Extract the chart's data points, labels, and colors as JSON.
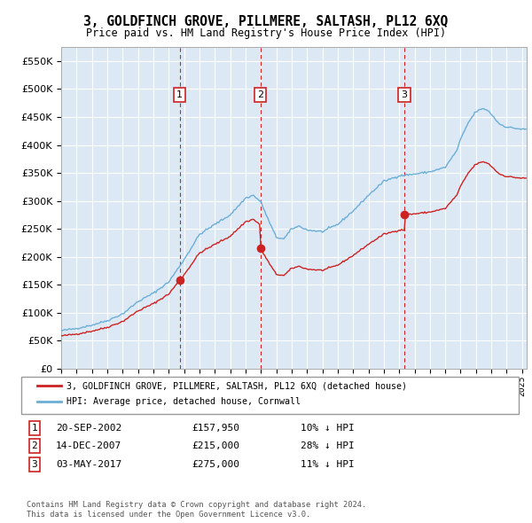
{
  "title": "3, GOLDFINCH GROVE, PILLMERE, SALTASH, PL12 6XQ",
  "subtitle": "Price paid vs. HM Land Registry's House Price Index (HPI)",
  "legend_line1": "3, GOLDFINCH GROVE, PILLMERE, SALTASH, PL12 6XQ (detached house)",
  "legend_line2": "HPI: Average price, detached house, Cornwall",
  "footer1": "Contains HM Land Registry data © Crown copyright and database right 2024.",
  "footer2": "This data is licensed under the Open Government Licence v3.0.",
  "hpi_color": "#6baed6",
  "sale_color": "#cc2222",
  "vline_color": "#cc2222",
  "bg_color": "#dce9f5",
  "ylim": [
    0,
    575000
  ],
  "xlim_start": 1995.0,
  "xlim_end": 2025.3,
  "sales": [
    {
      "label": "1",
      "date": "20-SEP-2002",
      "price": 157950,
      "note": "10% ↓ HPI",
      "x_year": 2002.72
    },
    {
      "label": "2",
      "date": "14-DEC-2007",
      "price": 215000,
      "note": "28% ↓ HPI",
      "x_year": 2007.96
    },
    {
      "label": "3",
      "date": "03-MAY-2017",
      "price": 275000,
      "note": "11% ↓ HPI",
      "x_year": 2017.34
    }
  ]
}
